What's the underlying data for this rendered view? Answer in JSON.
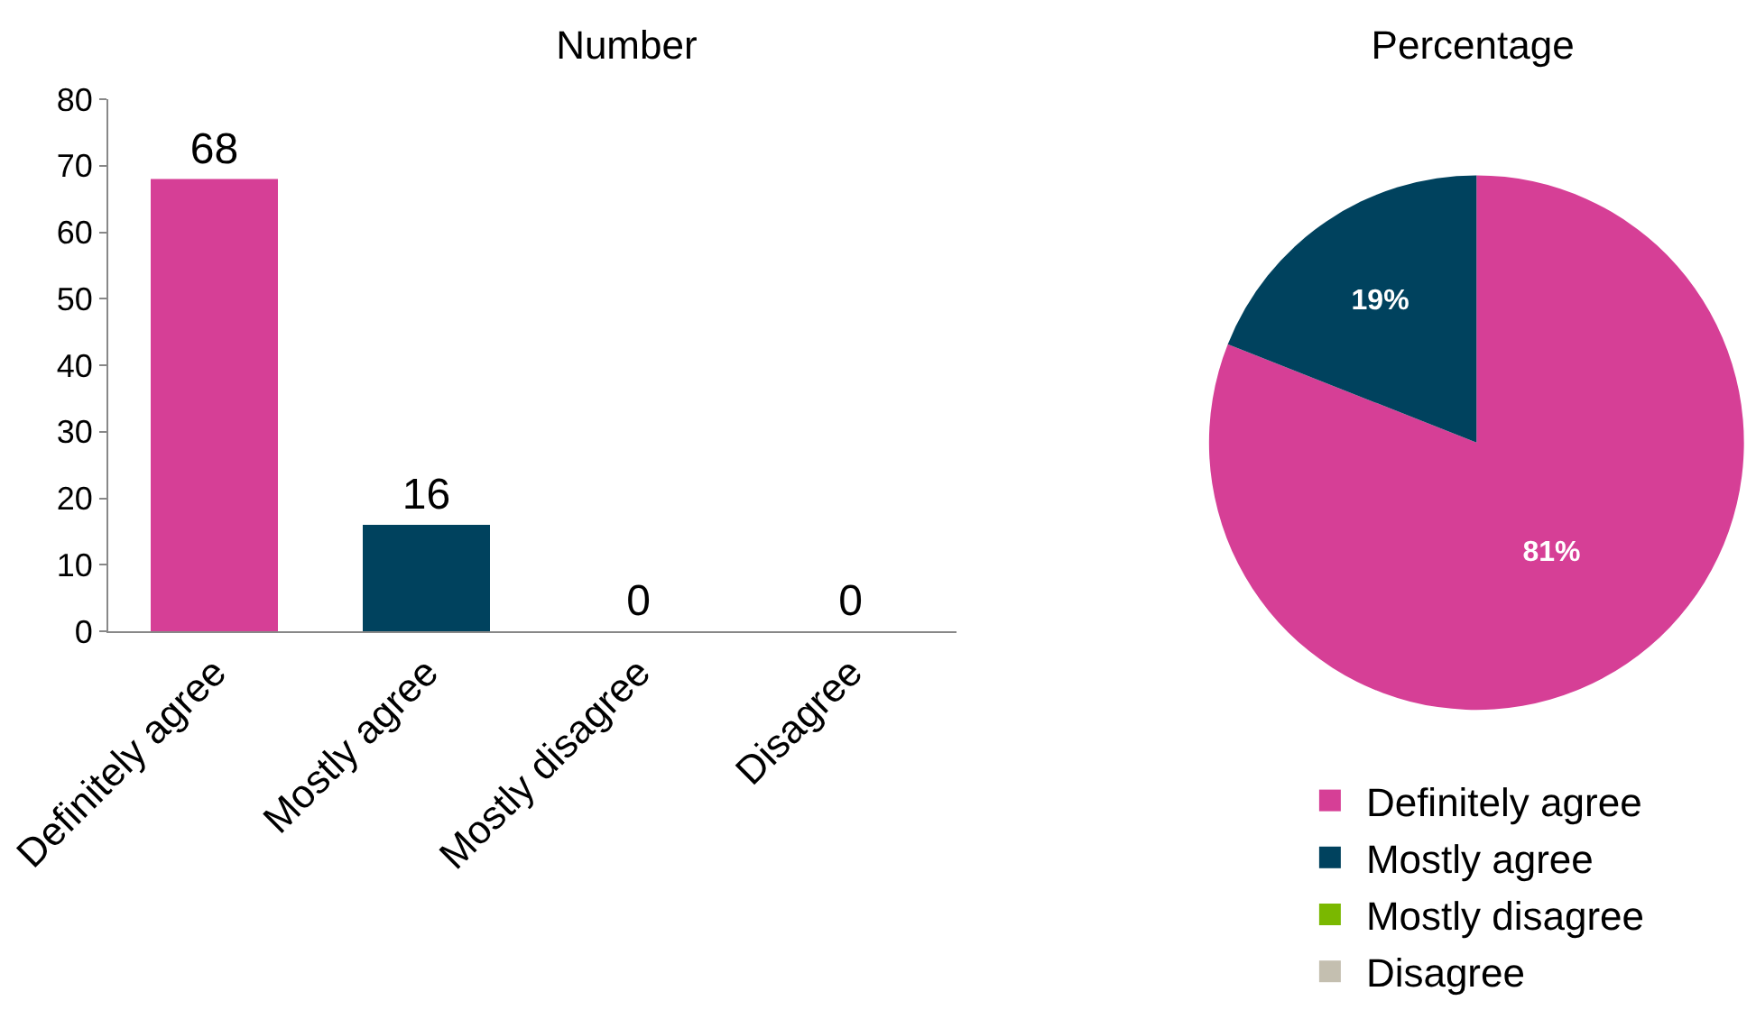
{
  "chart_data": [
    {
      "type": "bar",
      "title": "Number",
      "categories": [
        "Definitely agree",
        "Mostly agree",
        "Mostly disagree",
        "Disagree"
      ],
      "values": [
        68,
        16,
        0,
        0
      ],
      "colors": [
        "#d63f96",
        "#00425e",
        "#7ab800",
        "#c4bfb0"
      ],
      "ylim": [
        0,
        80
      ],
      "yticks": [
        0,
        10,
        20,
        30,
        40,
        50,
        60,
        70,
        80
      ],
      "grid": false,
      "data_labels": true,
      "legend": false
    },
    {
      "type": "pie",
      "title": "Percentage",
      "categories": [
        "Definitely agree",
        "Mostly agree",
        "Mostly disagree",
        "Disagree"
      ],
      "values": [
        81,
        19,
        0,
        0
      ],
      "colors": [
        "#d63f96",
        "#00425e",
        "#7ab800",
        "#c4bfb0"
      ],
      "value_labels": [
        "81%",
        "19%",
        null,
        null
      ],
      "legend": "bottom"
    }
  ]
}
